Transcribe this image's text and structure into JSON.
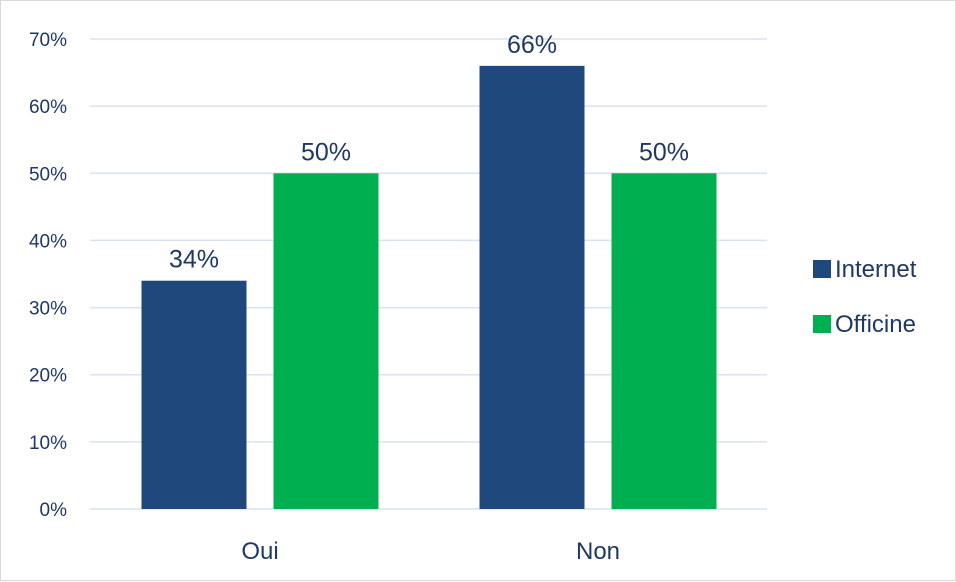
{
  "chart_data": {
    "type": "bar",
    "categories": [
      "Oui",
      "Non"
    ],
    "series": [
      {
        "name": "Internet",
        "values": [
          34,
          66
        ],
        "labels": [
          "34%",
          "66%"
        ],
        "color": "#1f497d"
      },
      {
        "name": "Officine",
        "values": [
          50,
          50
        ],
        "labels": [
          "50%",
          "50%"
        ],
        "color": "#00b050"
      }
    ],
    "ylim": [
      0,
      70
    ],
    "yticks": [
      0,
      10,
      20,
      30,
      40,
      50,
      60,
      70
    ],
    "ytick_labels": [
      "0%",
      "10%",
      "20%",
      "30%",
      "40%",
      "50%",
      "60%",
      "70%"
    ],
    "grid": true,
    "legend_position": "right",
    "colors": {
      "gridline": "#d9e2f3",
      "text": "#1f3864"
    }
  }
}
